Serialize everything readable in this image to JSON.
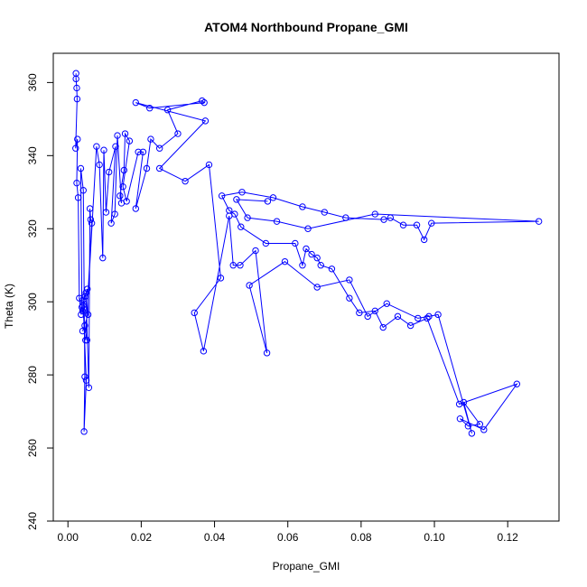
{
  "chart_data": {
    "type": "scatter",
    "title": "ATOM4 Northbound Propane_GMI",
    "xlabel": "Propane_GMI",
    "ylabel": "Theta (K)",
    "xlim": [
      -0.004,
      0.134
    ],
    "ylim": [
      240,
      368
    ],
    "xticks": [
      0.0,
      0.02,
      0.04,
      0.06,
      0.08,
      0.1,
      0.12
    ],
    "xtick_labels": [
      "0.00",
      "0.02",
      "0.04",
      "0.06",
      "0.08",
      "0.10",
      "0.12"
    ],
    "yticks": [
      240,
      260,
      280,
      300,
      320,
      340,
      360
    ],
    "ytick_labels": [
      "240",
      "260",
      "280",
      "300",
      "320",
      "340",
      "360"
    ],
    "grid": false,
    "legend": "none",
    "series_color": "#0000ff",
    "series": [
      {
        "mode": "lines+markers",
        "x": [
          0.0022,
          0.0022,
          0.0024,
          0.0025,
          0.0021,
          0.0026,
          0.0024,
          0.0028,
          0.0031,
          0.0036,
          0.0038,
          0.0035,
          0.0042,
          0.0046,
          0.0044,
          0.005,
          0.0041,
          0.0047,
          0.0053,
          0.0055,
          0.004,
          0.0046,
          0.0052,
          0.004,
          0.0041,
          0.0049,
          0.0057,
          0.006,
          0.0062,
          0.0065,
          0.0048,
          0.0078,
          0.0086,
          0.0095,
          0.0098,
          0.0104,
          0.0112,
          0.013,
          0.0118,
          0.0128,
          0.0135,
          0.0146,
          0.0142,
          0.0153,
          0.0156,
          0.0168,
          0.015,
          0.016,
          0.0192,
          0.0205,
          0.0185,
          0.0215,
          0.0226,
          0.025,
          0.03,
          0.0272,
          0.0366,
          0.0372,
          0.0223,
          0.0185,
          0.0375,
          0.025,
          0.032,
          0.0385,
          0.0417,
          0.0345,
          0.037,
          0.044,
          0.0451,
          0.047,
          0.0512,
          0.0543,
          0.0495,
          0.0592,
          0.068,
          0.0768,
          0.0818,
          0.087,
          0.0955,
          0.0985,
          0.101,
          0.1102,
          0.108,
          0.1124,
          0.1092,
          0.107,
          0.1135,
          0.1225,
          0.1068,
          0.098,
          0.0935,
          0.09,
          0.086,
          0.0838,
          0.0795,
          0.0768,
          0.072,
          0.069,
          0.068,
          0.0665,
          0.065,
          0.064,
          0.062,
          0.054,
          0.0472,
          0.0455,
          0.044,
          0.042,
          0.0475,
          0.056,
          0.064,
          0.07,
          0.0758,
          0.0862,
          0.088,
          0.0915,
          0.0952,
          0.0972,
          0.0992,
          0.1285,
          0.0838,
          0.0655,
          0.057,
          0.049,
          0.046,
          0.0545
        ],
        "y": [
          362.5,
          361.0,
          358.5,
          355.5,
          342.0,
          344.5,
          332.5,
          328.5,
          301.0,
          296.5,
          298.5,
          336.5,
          330.5,
          279.5,
          264.5,
          278.5,
          300.5,
          301.5,
          303.5,
          296.5,
          292.0,
          293.5,
          289.5,
          297.5,
          299.0,
          302.5,
          276.5,
          325.5,
          322.5,
          321.5,
          289.5,
          342.5,
          337.5,
          312.0,
          341.5,
          324.5,
          335.5,
          342.5,
          321.5,
          324.0,
          345.5,
          327.0,
          329.0,
          336.0,
          346.0,
          344.0,
          331.5,
          327.5,
          341.0,
          341.0,
          325.5,
          336.5,
          344.5,
          342.0,
          346.0,
          352.5,
          355.0,
          354.5,
          353.0,
          354.5,
          349.5,
          336.5,
          333.0,
          337.5,
          306.5,
          297.0,
          286.5,
          323.5,
          310.0,
          310.0,
          314.0,
          286.0,
          304.5,
          311.0,
          304.0,
          306.0,
          296.0,
          299.5,
          295.5,
          296.0,
          296.5,
          264.0,
          272.5,
          266.5,
          266.0,
          268.0,
          265.0,
          277.5,
          272.0,
          295.5,
          293.5,
          296.0,
          293.0,
          297.5,
          297.0,
          301.0,
          309.0,
          310.0,
          312.0,
          313.0,
          314.5,
          310.0,
          316.0,
          316.0,
          320.5,
          324.0,
          325.0,
          329.0,
          330.0,
          328.5,
          326.0,
          324.5,
          323.0,
          322.5,
          323.0,
          321.0,
          321.0,
          317.0,
          321.5,
          322.0,
          324.0,
          320.0,
          322.0,
          323.0,
          328.0,
          327.5
        ]
      }
    ]
  }
}
